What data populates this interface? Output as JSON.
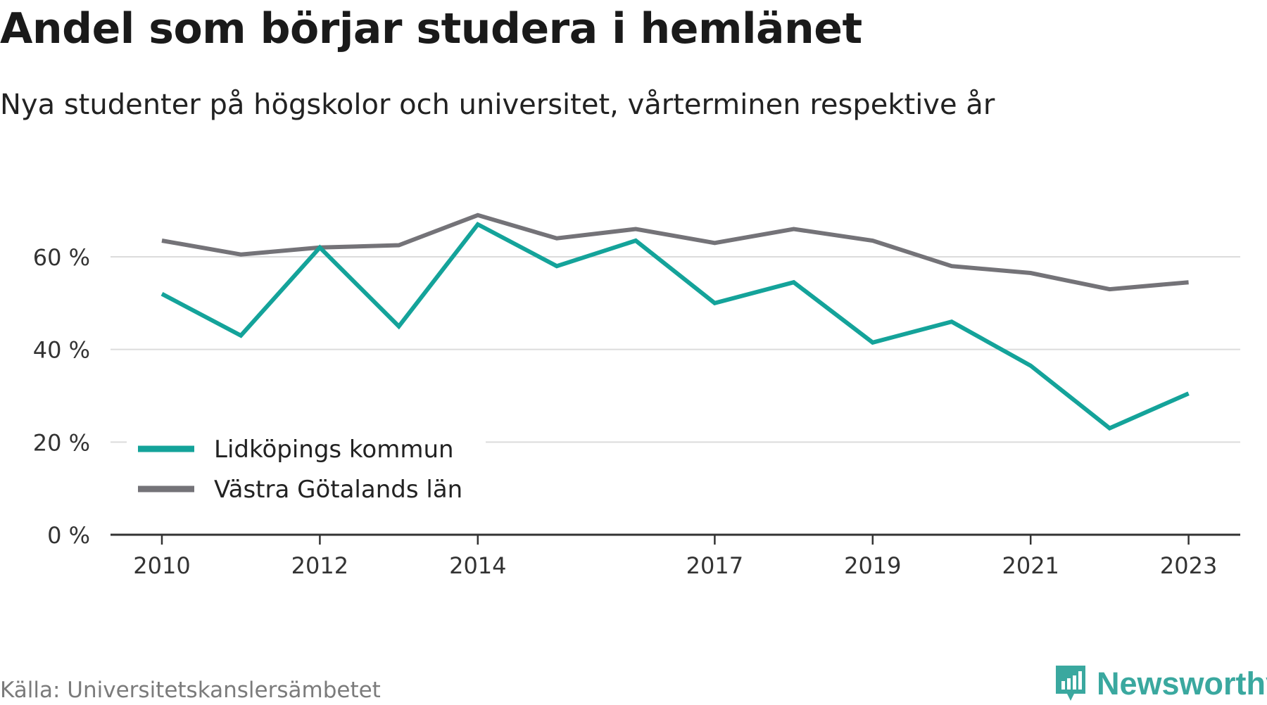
{
  "chart_data": {
    "type": "line",
    "title": "Andel som börjar studera i hemlänet",
    "subtitle": "Nya studenter på högskolor och universitet, vårterminen respektive år",
    "x": [
      2010,
      2011,
      2012,
      2013,
      2014,
      2015,
      2016,
      2017,
      2018,
      2019,
      2020,
      2021,
      2022,
      2023
    ],
    "x_tick_labels": [
      "2010",
      "2012",
      "2014",
      "2017",
      "2019",
      "2021",
      "2023"
    ],
    "x_tick_values": [
      2010,
      2012,
      2014,
      2017,
      2019,
      2021,
      2023
    ],
    "y_ticks": [
      0,
      20,
      40,
      60
    ],
    "y_tick_labels": [
      "0 %",
      "20 %",
      "40 %",
      "60 %"
    ],
    "ylim": [
      0,
      70
    ],
    "grid": true,
    "legend_position": "bottom-left",
    "series": [
      {
        "name": "Lidköpings kommun",
        "color": "#14a39a",
        "values": [
          52.0,
          43.0,
          62.0,
          45.0,
          67.0,
          58.0,
          63.5,
          50.0,
          54.5,
          41.5,
          46.0,
          36.5,
          23.0,
          30.5
        ]
      },
      {
        "name": "Västra Götalands län",
        "color": "#747378",
        "values": [
          63.5,
          60.5,
          62.0,
          62.5,
          69.0,
          64.0,
          66.0,
          63.0,
          66.0,
          63.5,
          58.0,
          56.5,
          53.0,
          54.5
        ]
      }
    ]
  },
  "footer": {
    "source": "Källa: Universitetskanslersämbetet",
    "brand": "Newsworthy",
    "brand_color": "#3aa89f"
  }
}
